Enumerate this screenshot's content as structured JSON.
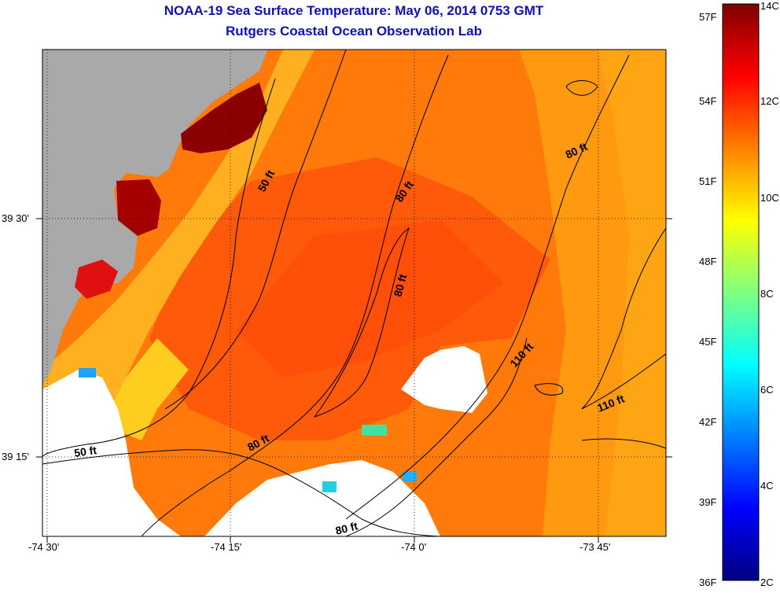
{
  "header": {
    "title": "NOAA-19 Sea Surface Temperature:  May 06, 2014 0753 GMT",
    "subtitle": "Rutgers Coastal Ocean Observation Lab"
  },
  "map": {
    "lon_ticks": [
      "-74 30'",
      "-74 15'",
      "-74 0'",
      "-73 45'"
    ],
    "lat_ticks": [
      "39 30'",
      "39 15'"
    ],
    "contour_labels": [
      "50 ft",
      "80 ft",
      "80 ft",
      "80 ft",
      "110 ft",
      "110 ft",
      "80 ft",
      "50 ft",
      "80 ft"
    ]
  },
  "colorbar": {
    "fahrenheit_labels": [
      "57F",
      "54F",
      "51F",
      "48F",
      "45F",
      "42F",
      "39F",
      "36F"
    ],
    "celsius_labels": [
      "14C",
      "12C",
      "10C",
      "8C",
      "6C",
      "4C",
      "2C"
    ],
    "range_c": [
      2,
      14
    ]
  },
  "colors": {
    "title": "#1010b8",
    "land": "#a9a9a9",
    "no_data": "#ffffff"
  }
}
